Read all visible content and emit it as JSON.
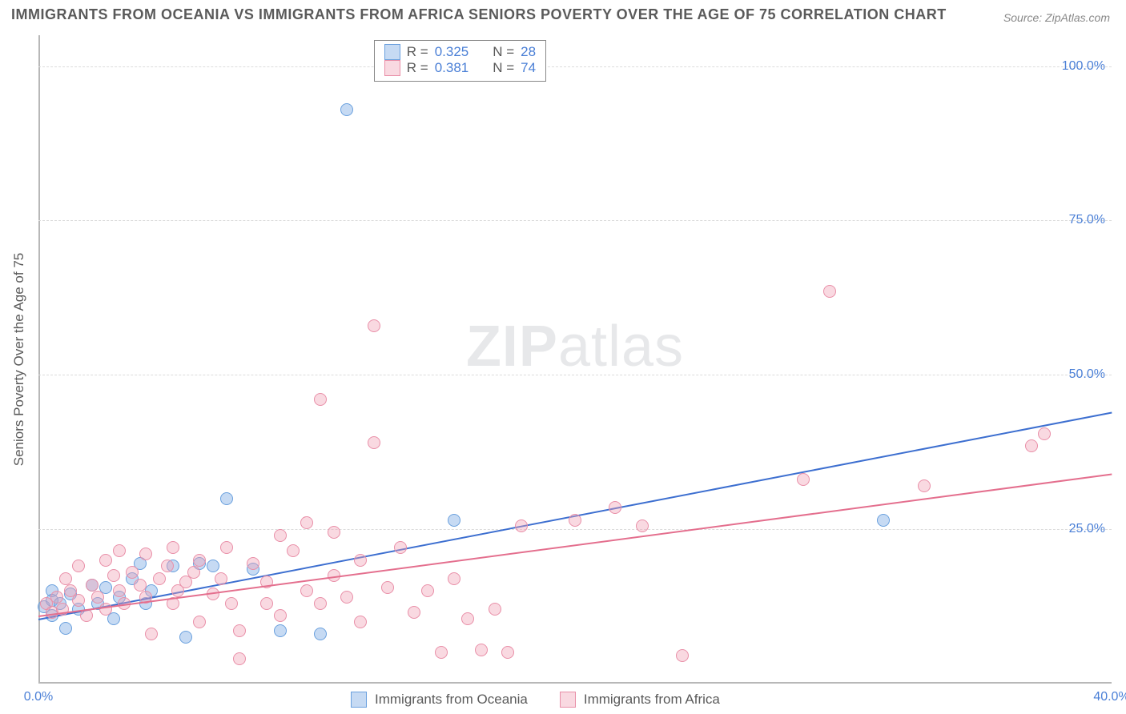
{
  "title": "IMMIGRANTS FROM OCEANIA VS IMMIGRANTS FROM AFRICA SENIORS POVERTY OVER THE AGE OF 75 CORRELATION CHART",
  "source_prefix": "Source: ",
  "source_name": "ZipAtlas.com",
  "ylabel": "Seniors Poverty Over the Age of 75",
  "watermark_a": "ZIP",
  "watermark_b": "atlas",
  "chart": {
    "type": "scatter",
    "xlim": [
      0,
      40
    ],
    "ylim": [
      0,
      105
    ],
    "xtick_labels": {
      "0": "0.0%",
      "40": "40.0%"
    },
    "ytick_labels": {
      "25": "25.0%",
      "50": "50.0%",
      "75": "75.0%",
      "100": "100.0%"
    },
    "grid_y": [
      25,
      50,
      75,
      100
    ],
    "grid_color": "#dcdcdc",
    "axis_color": "#b8b8b8",
    "background_color": "#ffffff",
    "tick_label_color": "#4a7fd6",
    "tick_label_fontsize": 16,
    "title_color": "#5a5a5a",
    "title_fontsize": 18,
    "marker_radius": 8,
    "marker_stroke_width": 1.5,
    "trend_width": 2,
    "series": [
      {
        "id": "oceania",
        "label": "Immigrants from Oceania",
        "fill_color": "rgba(129,174,228,0.45)",
        "stroke_color": "#6aa0de",
        "trend_color": "#3d6fd0",
        "R": "0.325",
        "N": "28",
        "trend_y0": 10.5,
        "trend_y40": 44.0,
        "points": [
          [
            0.2,
            12.5
          ],
          [
            0.5,
            15
          ],
          [
            0.5,
            11
          ],
          [
            0.5,
            13.5
          ],
          [
            0.8,
            13
          ],
          [
            1.0,
            9
          ],
          [
            1.2,
            14.5
          ],
          [
            1.5,
            12
          ],
          [
            2.0,
            16
          ],
          [
            2.2,
            13
          ],
          [
            2.5,
            15.5
          ],
          [
            2.8,
            10.5
          ],
          [
            3.0,
            14
          ],
          [
            3.5,
            17
          ],
          [
            3.8,
            19.5
          ],
          [
            4.0,
            13
          ],
          [
            4.2,
            15
          ],
          [
            5.0,
            19
          ],
          [
            5.5,
            7.5
          ],
          [
            6.0,
            19.5
          ],
          [
            6.5,
            19
          ],
          [
            7.0,
            30
          ],
          [
            8.0,
            18.5
          ],
          [
            9.0,
            8.5
          ],
          [
            10.5,
            8
          ],
          [
            11.5,
            93
          ],
          [
            15.5,
            26.5
          ],
          [
            31.5,
            26.5
          ]
        ]
      },
      {
        "id": "africa",
        "label": "Immigrants from Africa",
        "fill_color": "rgba(240,160,180,0.40)",
        "stroke_color": "#e98fa8",
        "trend_color": "#e46f8e",
        "R": "0.381",
        "N": "74",
        "trend_y0": 11.0,
        "trend_y40": 34.0,
        "points": [
          [
            0.3,
            13
          ],
          [
            0.5,
            11.5
          ],
          [
            0.7,
            14
          ],
          [
            0.9,
            12
          ],
          [
            1.0,
            17
          ],
          [
            1.2,
            15
          ],
          [
            1.5,
            13.5
          ],
          [
            1.5,
            19
          ],
          [
            1.8,
            11
          ],
          [
            2.0,
            16
          ],
          [
            2.2,
            14
          ],
          [
            2.5,
            20
          ],
          [
            2.5,
            12
          ],
          [
            2.8,
            17.5
          ],
          [
            3.0,
            15
          ],
          [
            3.0,
            21.5
          ],
          [
            3.2,
            13
          ],
          [
            3.5,
            18
          ],
          [
            3.8,
            16
          ],
          [
            4.0,
            14
          ],
          [
            4.0,
            21
          ],
          [
            4.2,
            8
          ],
          [
            4.5,
            17
          ],
          [
            4.8,
            19
          ],
          [
            5.0,
            13
          ],
          [
            5.0,
            22
          ],
          [
            5.2,
            15
          ],
          [
            5.5,
            16.5
          ],
          [
            5.8,
            18
          ],
          [
            6.0,
            10
          ],
          [
            6.0,
            20
          ],
          [
            6.5,
            14.5
          ],
          [
            6.8,
            17
          ],
          [
            7.0,
            22
          ],
          [
            7.2,
            13
          ],
          [
            7.5,
            8.5
          ],
          [
            7.5,
            4
          ],
          [
            8.0,
            19.5
          ],
          [
            8.5,
            13
          ],
          [
            8.5,
            16.5
          ],
          [
            9.0,
            24
          ],
          [
            9.0,
            11
          ],
          [
            9.5,
            21.5
          ],
          [
            10.0,
            15
          ],
          [
            10.0,
            26
          ],
          [
            10.5,
            13
          ],
          [
            10.5,
            46
          ],
          [
            11.0,
            17.5
          ],
          [
            11.0,
            24.5
          ],
          [
            11.5,
            14
          ],
          [
            12.0,
            20
          ],
          [
            12.0,
            10
          ],
          [
            12.5,
            58
          ],
          [
            12.5,
            39
          ],
          [
            13.0,
            15.5
          ],
          [
            13.5,
            22
          ],
          [
            14.0,
            11.5
          ],
          [
            14.5,
            15
          ],
          [
            15.0,
            5
          ],
          [
            15.5,
            17
          ],
          [
            16.0,
            10.5
          ],
          [
            16.5,
            5.5
          ],
          [
            17.0,
            12
          ],
          [
            17.5,
            5
          ],
          [
            18.0,
            25.5
          ],
          [
            20.0,
            26.5
          ],
          [
            21.5,
            28.5
          ],
          [
            22.5,
            25.5
          ],
          [
            24.0,
            4.5
          ],
          [
            28.5,
            33
          ],
          [
            29.5,
            63.5
          ],
          [
            33.0,
            32
          ],
          [
            37.0,
            38.5
          ],
          [
            37.5,
            40.5
          ]
        ]
      }
    ],
    "legend_top": {
      "R_label": "R =",
      "N_label": "N ="
    }
  }
}
